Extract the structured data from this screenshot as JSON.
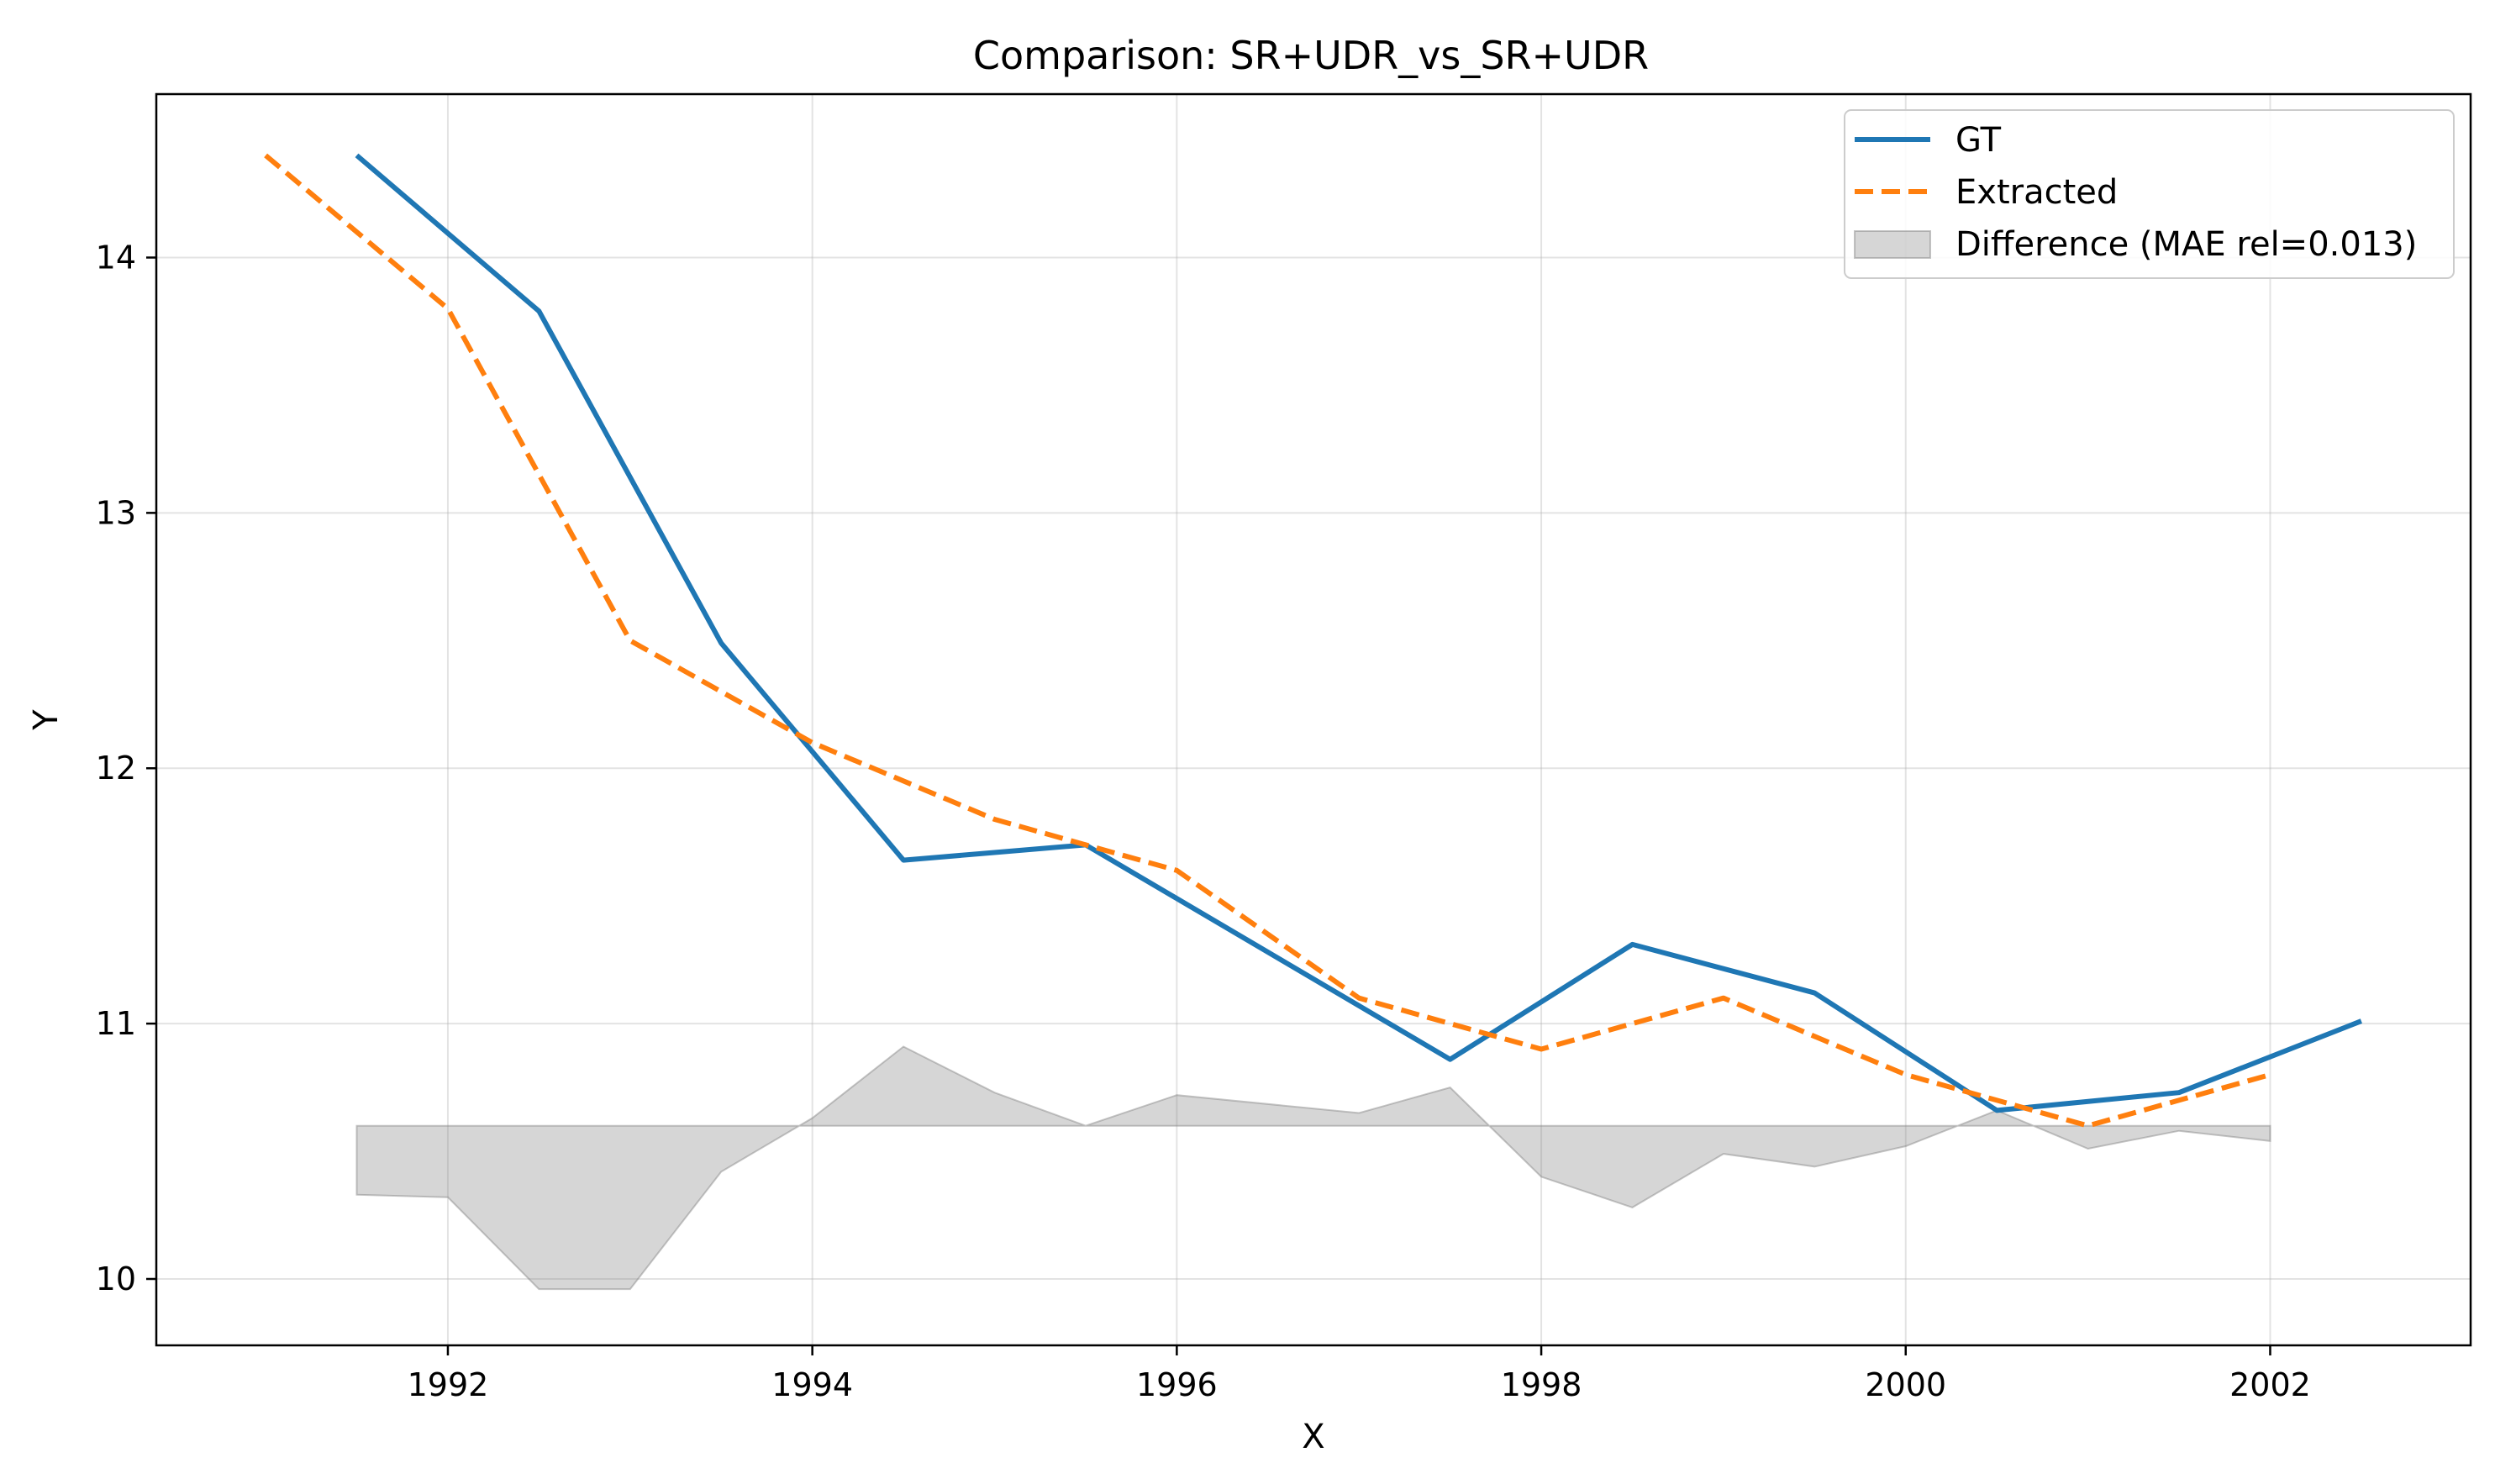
{
  "chart_data": {
    "type": "line",
    "title": "Comparison: SR+UDR_vs_SR+UDR",
    "xlabel": "X",
    "ylabel": "Y",
    "xlim": [
      1990.4,
      2003.1
    ],
    "ylim": [
      9.74,
      14.64
    ],
    "x_ticks": [
      1992,
      1994,
      1996,
      1998,
      2000,
      2002
    ],
    "y_ticks": [
      10,
      11,
      12,
      13,
      14
    ],
    "grid": true,
    "legend_position": "top-right",
    "series": [
      {
        "name": "GT",
        "style": "solid",
        "color": "#1f77b4",
        "x": [
          1991.5,
          1992.5,
          1993.5,
          1994.5,
          1995.5,
          1997.5,
          1998.5,
          1999.5,
          2000.5,
          2001.5,
          2002.5
        ],
        "y": [
          14.4,
          13.79,
          12.49,
          11.64,
          11.7,
          10.86,
          11.31,
          11.12,
          10.66,
          10.73,
          11.01
        ]
      },
      {
        "name": "Extracted",
        "style": "dashed",
        "color": "#ff7f0e",
        "x": [
          1991,
          1992,
          1993,
          1994,
          1995,
          1996,
          1997,
          1998,
          1999,
          2000,
          2001,
          2002
        ],
        "y": [
          14.4,
          13.8,
          12.5,
          12.1,
          11.8,
          11.6,
          11.1,
          10.9,
          11.1,
          10.8,
          10.6,
          10.8
        ]
      },
      {
        "name": "Difference (MAE rel=0.013)",
        "style": "fill",
        "color": "#d6d6d6",
        "baseline": 10.6,
        "x": [
          1991.5,
          1992,
          1992.5,
          1993,
          1993.5,
          1994,
          1994.5,
          1995,
          1995.5,
          1996,
          1997,
          1997.5,
          1998,
          1998.5,
          1999,
          1999.5,
          2000,
          2000.5,
          2001,
          2001.5,
          2002
        ],
        "y": [
          10.33,
          10.32,
          9.96,
          9.96,
          10.42,
          10.63,
          10.91,
          10.73,
          10.6,
          10.72,
          10.65,
          10.75,
          10.4,
          10.28,
          10.49,
          10.44,
          10.52,
          10.66,
          10.51,
          10.58,
          10.54
        ]
      }
    ]
  }
}
